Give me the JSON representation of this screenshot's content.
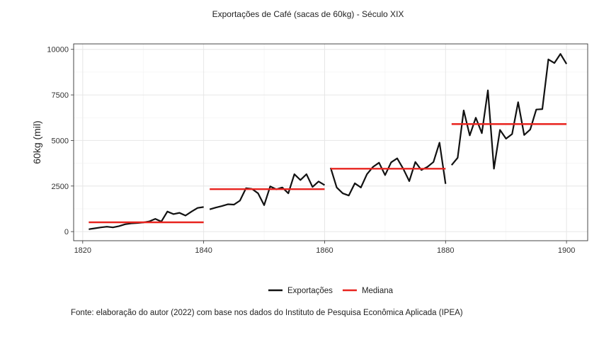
{
  "chart_data": {
    "type": "line",
    "title": "Exportações de Café (sacas de 60kg) - Século XIX",
    "xlabel": "",
    "ylabel": "60kg (mil)",
    "xlim": [
      1818.5,
      1903.5
    ],
    "ylim": [
      -500,
      10300
    ],
    "x_ticks": [
      1820,
      1840,
      1860,
      1880,
      1900
    ],
    "y_ticks": [
      0,
      2500,
      5000,
      7500,
      10000
    ],
    "y_tick_labels": [
      "0",
      "2500",
      "5000",
      "7500",
      "10000"
    ],
    "grid": true,
    "legend_position": "bottom",
    "caption": "Fonte: elaboração do autor (2022) com base nos dados do Instituto de Pesquisa Econômica Aplicada (IPEA)",
    "colors": {
      "Exportações": "#111111",
      "Mediana": "#e8231e"
    },
    "series": [
      {
        "name": "Exportações",
        "segments": [
          {
            "x": [
              1821,
              1822,
              1823,
              1824,
              1825,
              1826,
              1827,
              1828,
              1829,
              1830,
              1831,
              1832,
              1833,
              1834,
              1835,
              1836,
              1837,
              1838,
              1839,
              1840
            ],
            "y": [
              130,
              180,
              230,
              270,
              230,
              300,
              400,
              450,
              470,
              500,
              560,
              700,
              550,
              1100,
              960,
              1030,
              880,
              1100,
              1300,
              1350
            ]
          },
          {
            "x": [
              1841,
              1842,
              1843,
              1844,
              1845,
              1846,
              1847,
              1848,
              1849,
              1850,
              1851,
              1852,
              1853,
              1854,
              1855,
              1856,
              1857,
              1858,
              1859,
              1860
            ],
            "y": [
              1220,
              1320,
              1400,
              1500,
              1480,
              1700,
              2380,
              2340,
              2100,
              1450,
              2480,
              2320,
              2420,
              2100,
              3150,
              2830,
              3150,
              2450,
              2750,
              2550
            ]
          },
          {
            "x": [
              1861,
              1862,
              1863,
              1864,
              1865,
              1866,
              1867,
              1868,
              1869,
              1870,
              1871,
              1872,
              1873,
              1874,
              1875,
              1876,
              1877,
              1878,
              1879,
              1880
            ],
            "y": [
              3500,
              2420,
              2100,
              1980,
              2650,
              2420,
              3150,
              3550,
              3780,
              3100,
              3800,
              4020,
              3450,
              2770,
              3820,
              3380,
              3550,
              3820,
              4880,
              2620
            ]
          },
          {
            "x": [
              1881,
              1882,
              1883,
              1884,
              1885,
              1886,
              1887,
              1888,
              1889,
              1890,
              1891,
              1892,
              1893,
              1894,
              1895,
              1896,
              1897,
              1898,
              1899,
              1900
            ],
            "y": [
              3650,
              4050,
              6650,
              5280,
              6250,
              5400,
              7750,
              3450,
              5580,
              5100,
              5350,
              7100,
              5300,
              5600,
              6700,
              6720,
              9450,
              9250,
              9750,
              9200
            ]
          }
        ]
      },
      {
        "name": "Mediana",
        "segments": [
          {
            "x": [
              1821,
              1840
            ],
            "y": [
              510,
              510
            ]
          },
          {
            "x": [
              1841,
              1860
            ],
            "y": [
              2330,
              2330
            ]
          },
          {
            "x": [
              1861,
              1880
            ],
            "y": [
              3450,
              3450
            ]
          },
          {
            "x": [
              1881,
              1900
            ],
            "y": [
              5900,
              5900
            ]
          }
        ]
      }
    ]
  }
}
